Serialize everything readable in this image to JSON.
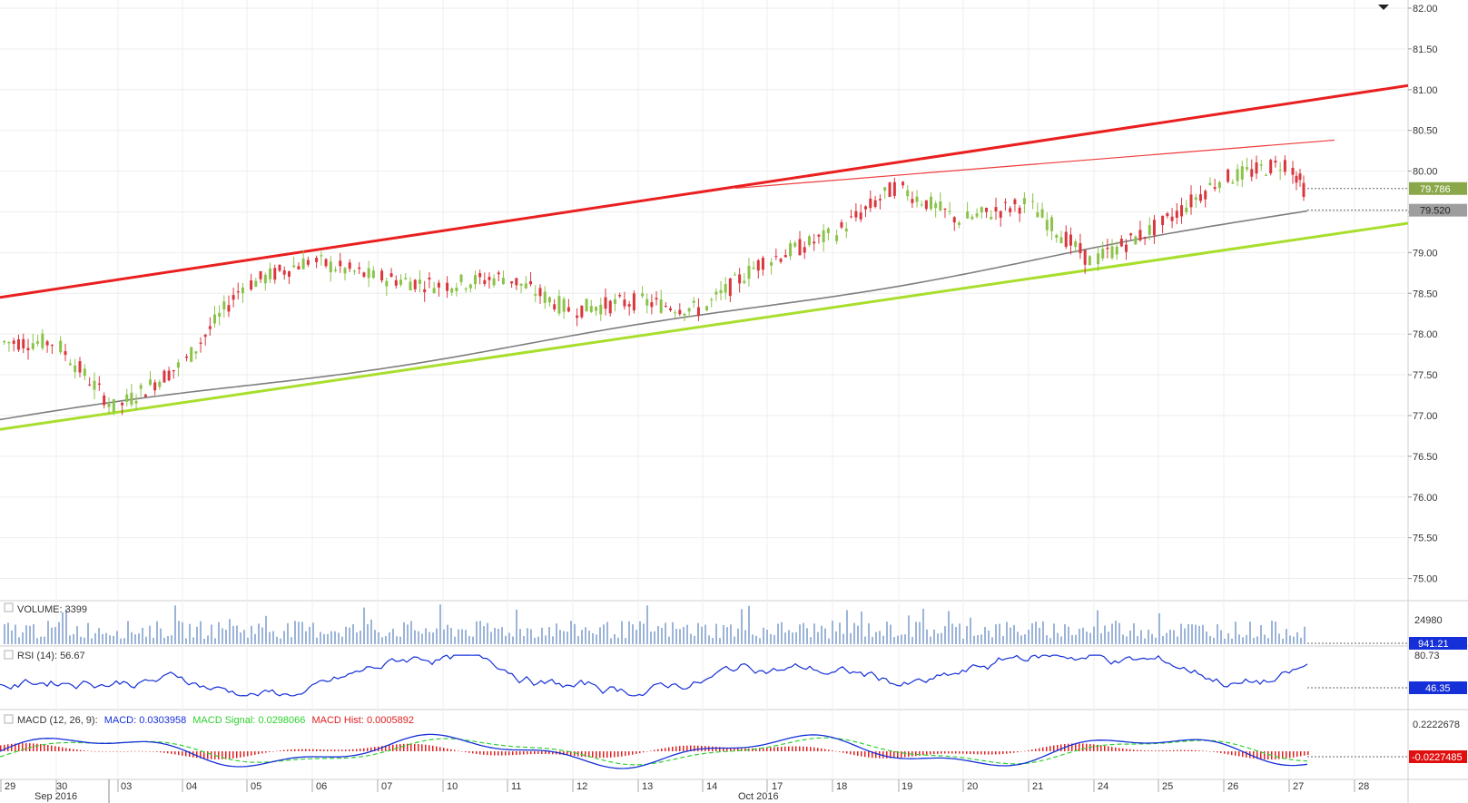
{
  "chart_data": [
    {
      "type": "candlestick",
      "pane": "price",
      "y_ticks": [
        "82.00",
        "81.50",
        "81.00",
        "80.50",
        "80.00",
        "79.50",
        "79.00",
        "78.50",
        "78.00",
        "77.50",
        "77.00",
        "76.50",
        "76.00",
        "75.50",
        "75.00"
      ],
      "ylim": [
        74.75,
        82.1
      ],
      "last_price_tag": "79.786",
      "ma_price_tag": "79.520",
      "ma_series_name": "",
      "session_closes": [
        {
          "day": "29",
          "value": 77.9
        },
        {
          "day": "30",
          "value": 77.1
        },
        {
          "day": "03",
          "value": 77.6
        },
        {
          "day": "04",
          "value": 78.6
        },
        {
          "day": "05",
          "value": 78.9
        },
        {
          "day": "06",
          "value": 78.7
        },
        {
          "day": "07",
          "value": 78.6
        },
        {
          "day": "10",
          "value": 78.7
        },
        {
          "day": "11",
          "value": 78.3
        },
        {
          "day": "12",
          "value": 78.4
        },
        {
          "day": "13",
          "value": 78.3
        },
        {
          "day": "14",
          "value": 78.9
        },
        {
          "day": "17",
          "value": 79.2
        },
        {
          "day": "18",
          "value": 79.8
        },
        {
          "day": "19",
          "value": 79.4
        },
        {
          "day": "20",
          "value": 79.6
        },
        {
          "day": "21",
          "value": 78.9
        },
        {
          "day": "24",
          "value": 79.3
        },
        {
          "day": "25",
          "value": 79.9
        },
        {
          "day": "26",
          "value": 80.1
        },
        {
          "day": "27",
          "value": 79.79
        }
      ],
      "trendlines": [
        {
          "role": "upper-channel",
          "color": "#ea1f1f",
          "from": 78.45,
          "to": 81.05
        },
        {
          "role": "lower-channel",
          "color": "#a8de2c",
          "from": 76.83,
          "to": 79.36
        },
        {
          "role": "resistance",
          "color": "#ef3b3b",
          "from": 79.79,
          "to": 80.38
        }
      ]
    },
    {
      "type": "bar",
      "pane": "volume",
      "title": "VOLUME: 3399",
      "y_ticks": [
        "24980"
      ],
      "tag": "941.21"
    },
    {
      "type": "line",
      "pane": "rsi",
      "title": "RSI (14): 56.67",
      "y_ticks": [
        "80.73"
      ],
      "tag": "46.35"
    },
    {
      "type": "line",
      "pane": "macd",
      "title_prefix": "MACD (12, 26, 9):",
      "macd_label": "MACD: 0.0303958",
      "signal_label": "MACD Signal: 0.0298066",
      "hist_label": "MACD Hist: 0.0005892",
      "y_ticks": [
        "0.2222678"
      ],
      "tag": "-0.0227485"
    }
  ],
  "x_axis": {
    "days": [
      "29",
      "30",
      "03",
      "04",
      "05",
      "06",
      "07",
      "10",
      "11",
      "12",
      "13",
      "14",
      "17",
      "18",
      "19",
      "20",
      "21",
      "24",
      "25",
      "26",
      "27",
      "28"
    ],
    "months": [
      {
        "label": "Sep 2016"
      },
      {
        "label": "Oct 2016"
      }
    ]
  },
  "colors": {
    "up": "#8bc34a",
    "down": "#d9363e",
    "ma": "#7f7f7f",
    "volume": "#9bb4d8",
    "rsi": "#1530d8",
    "macd": "#1530d8",
    "signal": "#2fd12f",
    "hist": "#e02020",
    "tag_price": "#8aa84a",
    "tag_ma": "#9e9e9e",
    "tag_rsi": "#1530d8",
    "tag_macd": "#e01010"
  },
  "ui": {
    "collapse_icon": "triangle-down-icon"
  }
}
